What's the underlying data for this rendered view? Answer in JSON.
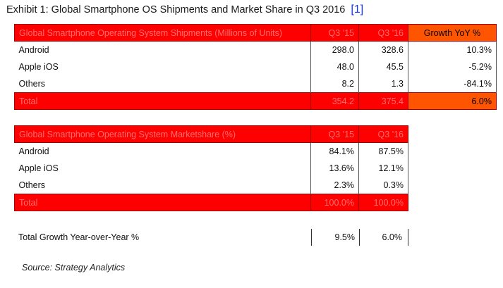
{
  "title": "Exhibit 1: Global Smartphone OS Shipments and Market Share in Q3 2016",
  "title_ref": "[1]",
  "shipments": {
    "header": [
      "Global Smartphone Operating System Shipments (Millions of Units)",
      "Q3 '15",
      "Q3 '16",
      "Growth YoY %"
    ],
    "rows": [
      [
        "Android",
        "298.0",
        "328.6",
        "10.3%"
      ],
      [
        "Apple iOS",
        "48.0",
        "45.5",
        "-5.2%"
      ],
      [
        "Others",
        "8.2",
        "1.3",
        "-84.1%"
      ]
    ],
    "total": [
      "Total",
      "354.2",
      "375.4",
      "6.0%"
    ]
  },
  "marketshare": {
    "header": [
      "Global Smartphone Operating System Marketshare (%)",
      "Q3 '15",
      "Q3 '16"
    ],
    "rows": [
      [
        "Android",
        "84.1%",
        "87.5%"
      ],
      [
        "Apple iOS",
        "13.6%",
        "12.1%"
      ],
      [
        "Others",
        "2.3%",
        "0.3%"
      ]
    ],
    "total": [
      "Total",
      "100.0%",
      "100.0%"
    ]
  },
  "total_growth": {
    "label": "Total Growth Year-over-Year %",
    "q3_15": "9.5%",
    "q3_16": "6.0%"
  },
  "source": "Source: Strategy Analytics",
  "colors": {
    "header_red": "#ff0000",
    "growth_orange": "#ff5500",
    "ref_blue": "#1a3adb"
  }
}
